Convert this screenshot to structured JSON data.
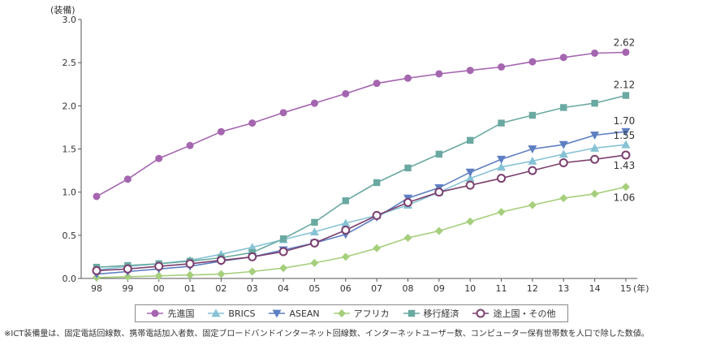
{
  "chart_data": {
    "type": "line",
    "ylabel": "(装備)",
    "x_unit": "(年)",
    "categories": [
      "98",
      "99",
      "00",
      "01",
      "02",
      "03",
      "04",
      "05",
      "06",
      "07",
      "08",
      "09",
      "10",
      "11",
      "12",
      "13",
      "14",
      "15"
    ],
    "ylim": [
      0,
      3.0
    ],
    "yticks": [
      "0.0",
      "0.5",
      "1.0",
      "1.5",
      "2.0",
      "2.5",
      "3.0"
    ],
    "grid": false,
    "legend_position": "bottom",
    "series": [
      {
        "name": "先進国",
        "color": "#a566b0",
        "marker": "circle",
        "values": [
          0.95,
          1.15,
          1.39,
          1.54,
          1.7,
          1.8,
          1.92,
          2.03,
          2.14,
          2.26,
          2.32,
          2.37,
          2.41,
          2.45,
          2.51,
          2.56,
          2.61,
          2.62
        ],
        "end_label": "2.62"
      },
      {
        "name": "BRICS",
        "color": "#86c2d5",
        "marker": "triangle-up",
        "values": [
          0.1,
          0.14,
          0.17,
          0.21,
          0.28,
          0.36,
          0.45,
          0.54,
          0.64,
          0.73,
          0.85,
          1.0,
          1.16,
          1.29,
          1.36,
          1.44,
          1.51,
          1.55
        ],
        "end_label": "1.55"
      },
      {
        "name": "ASEAN",
        "color": "#5e7fc2",
        "marker": "triangle-down",
        "values": [
          0.05,
          0.08,
          0.11,
          0.14,
          0.2,
          0.25,
          0.33,
          0.41,
          0.51,
          0.71,
          0.93,
          1.05,
          1.23,
          1.38,
          1.5,
          1.55,
          1.66,
          1.7
        ],
        "end_label": "1.70"
      },
      {
        "name": "アフリカ",
        "color": "#a6cf7d",
        "marker": "diamond",
        "values": [
          0.01,
          0.02,
          0.03,
          0.04,
          0.05,
          0.08,
          0.12,
          0.18,
          0.25,
          0.35,
          0.47,
          0.55,
          0.66,
          0.77,
          0.85,
          0.93,
          0.98,
          1.06
        ],
        "end_label": "1.06"
      },
      {
        "name": "移行経済",
        "color": "#6aa9a1",
        "marker": "square",
        "values": [
          0.13,
          0.15,
          0.17,
          0.2,
          0.24,
          0.3,
          0.46,
          0.65,
          0.9,
          1.11,
          1.28,
          1.44,
          1.6,
          1.8,
          1.89,
          1.98,
          2.03,
          2.12
        ],
        "end_label": "2.12"
      },
      {
        "name": "途上国・その他",
        "color": "#7b3f6e",
        "marker": "open-circle",
        "values": [
          0.09,
          0.11,
          0.14,
          0.17,
          0.21,
          0.25,
          0.31,
          0.41,
          0.56,
          0.73,
          0.88,
          1.0,
          1.08,
          1.16,
          1.25,
          1.34,
          1.38,
          1.43
        ],
        "end_label": "1.43"
      }
    ]
  },
  "legend": {
    "items": [
      "先進国",
      "BRICS",
      "ASEAN",
      "アフリカ",
      "移行経済",
      "途上国・その他"
    ]
  },
  "footnote": "※ICT装備量は、固定電話回線数、携帯電話加入者数、固定ブロードバンドインターネット回線数、インターネットユーザー数、コンピューター保有世帯数を人口で除した数値。"
}
